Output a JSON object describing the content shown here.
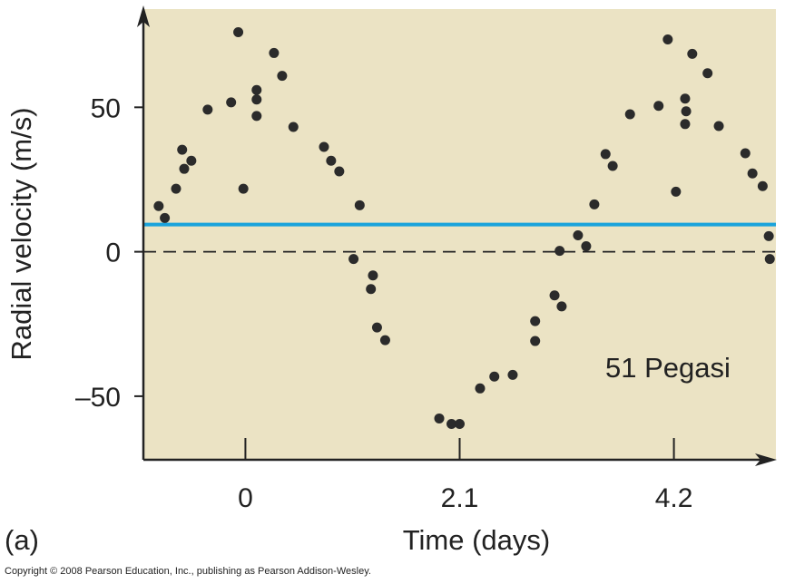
{
  "chart_data": {
    "type": "scatter",
    "title": "",
    "annotation": "51 Pegasi",
    "panel_label": "(a)",
    "xlabel": "Time (days)",
    "ylabel": "Radial velocity (m/s)",
    "xlim": [
      -1.0,
      5.2
    ],
    "ylim": [
      -72,
      84
    ],
    "xticks": [
      {
        "value": 0,
        "label": "0"
      },
      {
        "value": 2.1,
        "label": "2.1"
      },
      {
        "value": 4.2,
        "label": "4.2"
      }
    ],
    "yticks": [
      {
        "value": 50,
        "label": "50"
      },
      {
        "value": 0,
        "label": "0"
      },
      {
        "value": -50,
        "label": "–50"
      }
    ],
    "reference_lines": [
      {
        "name": "mean-velocity-line",
        "y": 9.4,
        "color": "#1aa3dc",
        "style": "solid"
      },
      {
        "name": "zero-line",
        "y": 0,
        "color": "#222222",
        "style": "dashed"
      }
    ],
    "background": "#ebe3c4",
    "point_color": "#2b2b2b",
    "points": [
      [
        -0.85,
        15.8
      ],
      [
        -0.79,
        11.7
      ],
      [
        -0.68,
        21.8
      ],
      [
        -0.62,
        35.3
      ],
      [
        -0.6,
        28.7
      ],
      [
        -0.53,
        31.5
      ],
      [
        -0.37,
        49.2
      ],
      [
        -0.14,
        51.7
      ],
      [
        -0.07,
        76
      ],
      [
        -0.02,
        21.8
      ],
      [
        0.11,
        56
      ],
      [
        0.11,
        52.7
      ],
      [
        0.11,
        47
      ],
      [
        0.28,
        68.8
      ],
      [
        0.36,
        60.9
      ],
      [
        0.47,
        43.2
      ],
      [
        0.77,
        36.3
      ],
      [
        0.84,
        31.5
      ],
      [
        0.92,
        27.8
      ],
      [
        1.12,
        16.1
      ],
      [
        1.06,
        -2.5
      ],
      [
        1.25,
        -8.2
      ],
      [
        1.23,
        -12.9
      ],
      [
        1.29,
        -26.2
      ],
      [
        1.37,
        -30.6
      ],
      [
        1.9,
        -57.7
      ],
      [
        2.02,
        -59.6
      ],
      [
        2.1,
        -59.6
      ],
      [
        2.3,
        -47.3
      ],
      [
        2.44,
        -43.2
      ],
      [
        2.62,
        -42.6
      ],
      [
        2.84,
        -24.0
      ],
      [
        2.84,
        -30.9
      ],
      [
        3.03,
        -15.1
      ],
      [
        3.1,
        -18.9
      ],
      [
        3.08,
        0.3
      ],
      [
        3.26,
        5.7
      ],
      [
        3.34,
        1.9
      ],
      [
        3.42,
        16.4
      ],
      [
        3.53,
        33.8
      ],
      [
        3.6,
        29.7
      ],
      [
        3.77,
        47.6
      ],
      [
        4.05,
        50.5
      ],
      [
        4.14,
        73.5
      ],
      [
        4.22,
        20.8
      ],
      [
        4.38,
        68.5
      ],
      [
        4.31,
        53
      ],
      [
        4.32,
        48.6
      ],
      [
        4.31,
        44.2
      ],
      [
        4.53,
        61.8
      ],
      [
        4.64,
        43.5
      ],
      [
        4.9,
        34.1
      ],
      [
        4.97,
        27.1
      ],
      [
        5.07,
        22.7
      ],
      [
        5.13,
        5.4
      ],
      [
        5.14,
        -2.5
      ]
    ]
  },
  "footer": {
    "copyright": "Copyright © 2008 Pearson Education, Inc., publishing as Pearson Addison-Wesley."
  }
}
